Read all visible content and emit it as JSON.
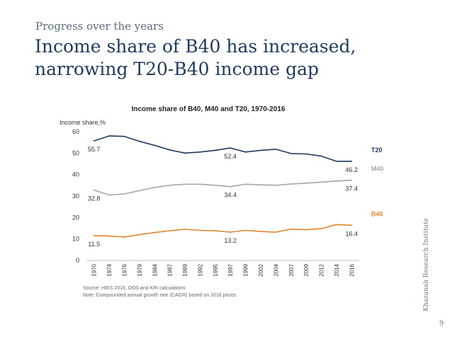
{
  "slide": {
    "kicker": "Progress over the years",
    "headline_line1": "Income share of B40 has increased,",
    "headline_line2": "narrowing T20-B40 income gap",
    "side_text": "Khazanah Research Institute",
    "page_number": "9",
    "source": "Source: HIES 2016, DOS and KRI calculations",
    "note": "Note: Compounded annual growth rate (CAGR) based on 2016 prices"
  },
  "chart_data": {
    "type": "line",
    "title": "Income share of B40, M40 and T20, 1970-2016",
    "ylabel": "Income share,%",
    "xlabel": "",
    "ylim": [
      0,
      60
    ],
    "yticks": [
      0,
      10,
      20,
      30,
      40,
      50,
      60
    ],
    "grid": false,
    "legend": "right",
    "categories": [
      "1970",
      "1974",
      "1976",
      "1979",
      "1984",
      "1987",
      "1989",
      "1992",
      "1995",
      "1997",
      "1999",
      "2002",
      "2004",
      "2007",
      "2009",
      "2012",
      "2014",
      "2016"
    ],
    "series": [
      {
        "name": "T20",
        "color": "#1f3a5f",
        "values": [
          55.7,
          58.0,
          57.8,
          55.5,
          53.6,
          51.5,
          50.0,
          50.5,
          51.3,
          52.4,
          50.5,
          51.3,
          51.8,
          49.8,
          49.6,
          48.6,
          46.2,
          46.2
        ],
        "labels": [
          {
            "index": 0,
            "text": "55.7"
          },
          {
            "index": 9,
            "text": "52.4"
          },
          {
            "index": 17,
            "text": "46.2"
          }
        ]
      },
      {
        "name": "M40",
        "color": "#a6a6a6",
        "values": [
          32.8,
          30.5,
          31.0,
          32.5,
          34.0,
          35.0,
          35.5,
          35.5,
          35.0,
          34.4,
          35.5,
          35.2,
          35.0,
          35.6,
          36.0,
          36.5,
          37.0,
          37.4
        ],
        "labels": [
          {
            "index": 0,
            "text": "32.8"
          },
          {
            "index": 9,
            "text": "34.4"
          },
          {
            "index": 17,
            "text": "37.4"
          }
        ]
      },
      {
        "name": "B40",
        "color": "#e0852f",
        "values": [
          11.5,
          11.4,
          10.9,
          12.0,
          13.0,
          13.8,
          14.5,
          14.0,
          13.8,
          13.2,
          14.0,
          13.5,
          13.2,
          14.6,
          14.3,
          14.8,
          16.7,
          16.4
        ],
        "labels": [
          {
            "index": 0,
            "text": "11.5"
          },
          {
            "index": 9,
            "text": "13.2"
          },
          {
            "index": 17,
            "text": "16.4"
          }
        ]
      }
    ]
  }
}
